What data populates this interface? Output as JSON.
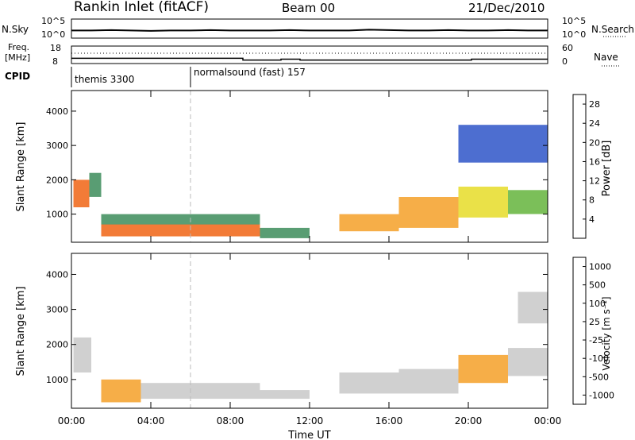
{
  "header": {
    "station": "Rankin Inlet (fitACF)",
    "beam": "Beam 00",
    "date": "21/Dec/2010"
  },
  "nsky_panel": {
    "left_label": "N.Sky",
    "left_ticks": [
      "10^5",
      "10^0"
    ],
    "right_ticks": [
      "10^5",
      "10^0"
    ],
    "right_label": "N.Search"
  },
  "freq_panel": {
    "left_label_line1": "Freq.",
    "left_label_line2": "[MHz]",
    "left_ticks": [
      "18",
      "8"
    ],
    "right_ticks": [
      "60",
      "0"
    ],
    "right_label": "Nave"
  },
  "cpid_panel": {
    "label": "CPID",
    "programs": [
      {
        "name": "themis 3300",
        "start_hour": 0
      },
      {
        "name": "normalsound (fast) 157",
        "start_hour": 6
      }
    ]
  },
  "colors": {
    "power_scale": [
      "#1e3cff",
      "#2e55c8",
      "#3c8c5a",
      "#64b43c",
      "#e6dc28",
      "#f5a028",
      "#f06414",
      "#ff1e00"
    ],
    "velocity_scale": [
      "#1e3cc8",
      "#2e7896",
      "#3c9646",
      "#64b43c",
      "#c8c8c8",
      "#c8c8c8",
      "#f5a028",
      "#f07814",
      "#f04614",
      "#ff0000"
    ]
  },
  "chart_data": [
    {
      "type": "heatmap",
      "xlabel": "",
      "ylabel": "Slant Range [km]",
      "x_range_hours": [
        0,
        24
      ],
      "ylim": [
        180,
        4600
      ],
      "yticks": [
        "1000",
        "2000",
        "3000",
        "4000"
      ],
      "colorbar": {
        "label": "Power [dB]",
        "ticks": [
          "4",
          "8",
          "12",
          "16",
          "20",
          "24",
          "28"
        ],
        "range": [
          0,
          30
        ]
      },
      "grid": false,
      "regions": [
        {
          "x0": 0.1,
          "x1": 0.9,
          "y0": 1200,
          "y1": 2000,
          "value": 24
        },
        {
          "x0": 0.9,
          "x1": 1.5,
          "y0": 1500,
          "y1": 2200,
          "value": 8
        },
        {
          "x0": 1.5,
          "x1": 9.5,
          "y0": 350,
          "y1": 700,
          "value": 26
        },
        {
          "x0": 1.5,
          "x1": 9.5,
          "y0": 700,
          "y1": 1000,
          "value": 10
        },
        {
          "x0": 9.5,
          "x1": 12.0,
          "y0": 300,
          "y1": 600,
          "value": 10
        },
        {
          "x0": 13.5,
          "x1": 16.5,
          "y0": 500,
          "y1": 1000,
          "value": 20
        },
        {
          "x0": 16.5,
          "x1": 19.5,
          "y0": 600,
          "y1": 1500,
          "value": 22
        },
        {
          "x0": 19.5,
          "x1": 22.0,
          "y0": 900,
          "y1": 1800,
          "value": 18
        },
        {
          "x0": 22.0,
          "x1": 24.0,
          "y0": 1000,
          "y1": 1700,
          "value": 14
        },
        {
          "x0": 19.5,
          "x1": 24.0,
          "y0": 2500,
          "y1": 3600,
          "value": 6
        }
      ]
    },
    {
      "type": "heatmap",
      "xlabel": "Time UT",
      "ylabel": "Slant Range [km]",
      "x_range_hours": [
        0,
        24
      ],
      "xticks": [
        "00:00",
        "04:00",
        "08:00",
        "12:00",
        "16:00",
        "20:00",
        "00:00"
      ],
      "ylim": [
        180,
        4600
      ],
      "yticks": [
        "1000",
        "2000",
        "3000",
        "4000"
      ],
      "colorbar": {
        "label": "Velocity [m s⁻¹]",
        "ticks": [
          "1000",
          "500",
          "100",
          "25",
          "-25",
          "-100",
          "-500",
          "-1000"
        ],
        "range": [
          -1200,
          1200
        ]
      },
      "grid": false,
      "regions": [
        {
          "x0": 0.1,
          "x1": 1.0,
          "y0": 1200,
          "y1": 2200,
          "value": 120
        },
        {
          "x0": 1.5,
          "x1": 3.5,
          "y0": 350,
          "y1": 1000,
          "value": -300
        },
        {
          "x0": 3.5,
          "x1": 9.5,
          "y0": 450,
          "y1": 900,
          "value": 150
        },
        {
          "x0": 9.5,
          "x1": 12.0,
          "y0": 450,
          "y1": 700,
          "value": 0
        },
        {
          "x0": 13.5,
          "x1": 16.5,
          "y0": 600,
          "y1": 1200,
          "value": 200
        },
        {
          "x0": 16.5,
          "x1": 19.5,
          "y0": 600,
          "y1": 1300,
          "value": -150
        },
        {
          "x0": 19.5,
          "x1": 22.0,
          "y0": 900,
          "y1": 1700,
          "value": -250
        },
        {
          "x0": 22.0,
          "x1": 24.0,
          "y0": 1100,
          "y1": 1900,
          "value": 0
        },
        {
          "x0": 22.5,
          "x1": 24.0,
          "y0": 2600,
          "y1": 3500,
          "value": -200
        }
      ]
    }
  ],
  "nsky_series": [
    2,
    2,
    2.1,
    2,
    1.9,
    2,
    2,
    2.1,
    2,
    2,
    2,
    2.1,
    2,
    2,
    2,
    2.2,
    2.1,
    2,
    2,
    2.1,
    2,
    2,
    2.1,
    2,
    2
  ],
  "freq_series": [
    11,
    11,
    11,
    11,
    11,
    11,
    11,
    11,
    11,
    10,
    10,
    10.5,
    10,
    10,
    10,
    10,
    10,
    10,
    10,
    10,
    10,
    10.5,
    10.5,
    10.5,
    10.5
  ]
}
